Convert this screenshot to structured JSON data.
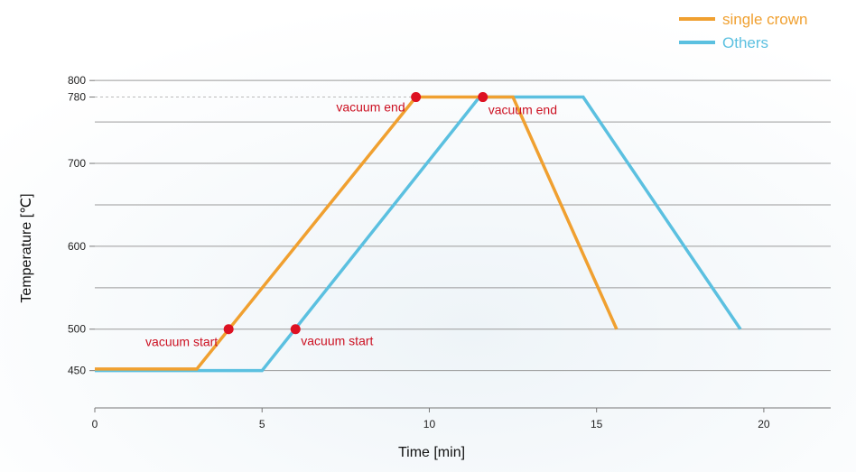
{
  "chart_data": {
    "type": "line",
    "xlabel": "Time [min]",
    "ylabel": "Temperature [℃]",
    "xlim": [
      0,
      22
    ],
    "ylim": [
      405,
      810
    ],
    "x_ticks": [
      0,
      5,
      10,
      15,
      20
    ],
    "y_ticks": [
      450,
      500,
      600,
      700,
      780,
      800
    ],
    "grid_values": [
      450,
      500,
      550,
      600,
      650,
      700,
      750,
      800
    ],
    "grid": true,
    "legend_position": "top-right",
    "series": [
      {
        "name": "single crown",
        "color": "#F0A030",
        "x": [
          0,
          3.05,
          9.6,
          12.5,
          15.6
        ],
        "y": [
          452,
          452,
          780,
          780,
          500
        ]
      },
      {
        "name": "Others",
        "color": "#5BC0E0",
        "x": [
          0,
          5.0,
          11.5,
          14.6,
          19.3
        ],
        "y": [
          450,
          450,
          780,
          780,
          500
        ]
      }
    ],
    "annotations": [
      {
        "label": "vacuum start",
        "x": 4.0,
        "y": 500,
        "side": "left"
      },
      {
        "label": "vacuum end",
        "x": 9.6,
        "y": 780,
        "side": "left"
      },
      {
        "label": "vacuum start",
        "x": 6.0,
        "y": 500,
        "side": "right"
      },
      {
        "label": "vacuum end",
        "x": 11.6,
        "y": 780,
        "side": "right"
      }
    ],
    "annotation_color": "#CC1122",
    "marker_color": "#DD1122"
  }
}
